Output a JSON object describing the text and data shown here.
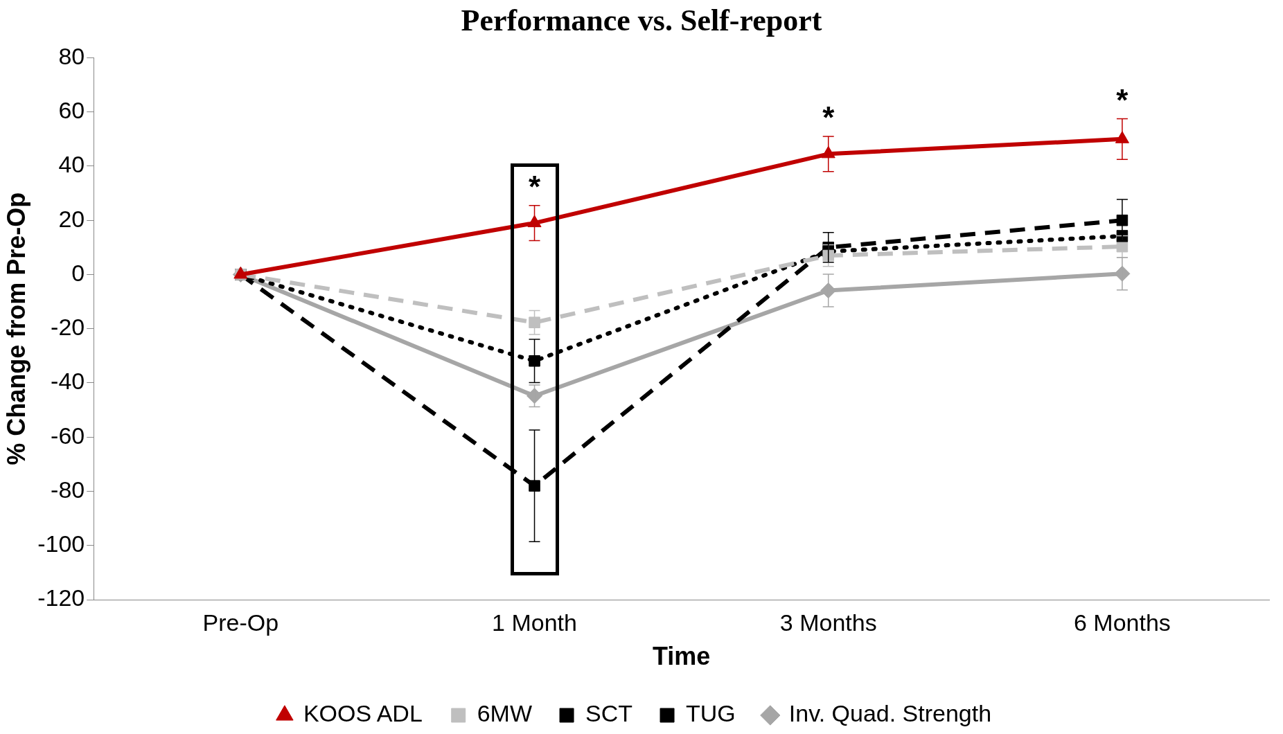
{
  "chart_data": {
    "type": "line",
    "title": "Performance vs. Self-report",
    "xlabel": "Time",
    "ylabel": "% Change from Pre-Op",
    "categories": [
      "Pre-Op",
      "1 Month",
      "3 Months",
      "6 Months"
    ],
    "series": [
      {
        "name": "KOOS ADL",
        "color": "#c00000",
        "values": [
          0,
          19,
          44.5,
          50
        ],
        "errors": [
          null,
          6.5,
          6.5,
          7.5
        ],
        "marker": "triangle",
        "line_style": "solid"
      },
      {
        "name": "6MW",
        "color": "#bfbfbf",
        "values": [
          0,
          -17.7,
          7,
          10.3
        ],
        "errors": [
          null,
          4.4,
          4,
          4
        ],
        "marker": "square",
        "line_style": "dashed"
      },
      {
        "name": "SCT",
        "color": "#000000",
        "values": [
          0,
          -78,
          10,
          20
        ],
        "errors": [
          null,
          20.6,
          5.5,
          7.7
        ],
        "marker": "square",
        "line_style": "dashed"
      },
      {
        "name": "TUG",
        "color": "#000000",
        "values": [
          0,
          -31.9,
          8.5,
          14.2
        ],
        "errors": [
          null,
          8,
          null,
          2
        ],
        "marker": "square",
        "line_style": "dotted"
      },
      {
        "name": "Inv. Quad. Strength",
        "color": "#a6a6a6",
        "values": [
          0,
          -44.8,
          -5.9,
          0.3
        ],
        "errors": [
          null,
          4,
          6,
          6
        ],
        "marker": "diamond",
        "line_style": "solid"
      }
    ],
    "ylim": [
      -120,
      80
    ],
    "yticks": [
      -120,
      -100,
      -80,
      -60,
      -40,
      -20,
      0,
      20,
      40,
      60,
      80
    ],
    "grid": false,
    "legend": "bottom",
    "annotations": [
      "*",
      "*",
      "*"
    ]
  }
}
